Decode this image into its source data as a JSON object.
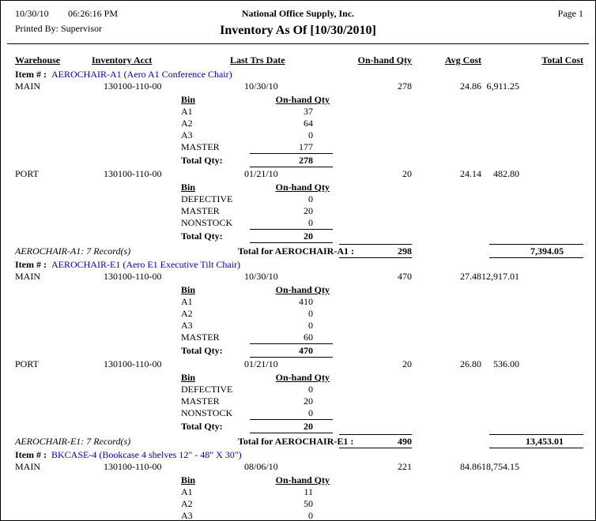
{
  "header": {
    "date": "10/30/10",
    "time": "06:26:16 PM",
    "company": "National Office Supply, Inc.",
    "page": "Page 1",
    "printed_by": "Printed By: Supervisor",
    "title": "Inventory As Of [10/30/2010]"
  },
  "columns": {
    "warehouse": "Warehouse",
    "inventory_acct": "Inventory Acct",
    "last_trs_date": "Last Trs Date",
    "on_hand_qty": "On-hand Qty",
    "avg_cost": "Avg Cost",
    "total_cost": "Total Cost"
  },
  "labels": {
    "item_prefix": "Item # :",
    "bin": "Bin",
    "bin_qty": "On-hand Qty",
    "total_qty": "Total Qty:"
  },
  "link_color": "#0000cc",
  "items": [
    {
      "code_desc": "AEROCHAIR-A1 (Aero A1 Conference Chair)",
      "warehouses": [
        {
          "name": "MAIN",
          "acct": "130100-110-00",
          "date": "10/30/10",
          "qty": "278",
          "avg": "24.86",
          "total": "6,911.25",
          "bins": [
            {
              "name": "A1",
              "qty": "37"
            },
            {
              "name": "A2",
              "qty": "64"
            },
            {
              "name": "A3",
              "qty": "0"
            },
            {
              "name": "MASTER",
              "qty": "177"
            }
          ],
          "bin_total": "278"
        },
        {
          "name": "PORT",
          "acct": "130100-110-00",
          "date": "01/21/10",
          "qty": "20",
          "avg": "24.14",
          "total": "482.80",
          "bins": [
            {
              "name": "DEFECTIVE",
              "qty": "0"
            },
            {
              "name": "MASTER",
              "qty": "20"
            },
            {
              "name": "NONSTOCK",
              "qty": "0"
            }
          ],
          "bin_total": "20"
        }
      ],
      "summary_left": "AEROCHAIR-A1: 7 Record(s)",
      "summary_label": "Total for AEROCHAIR-A1 :",
      "summary_qty": "298",
      "summary_total": "7,394.05"
    },
    {
      "code_desc": "AEROCHAIR-E1 (Aero E1 Executive Tilt Chair)",
      "warehouses": [
        {
          "name": "MAIN",
          "acct": "130100-110-00",
          "date": "10/30/10",
          "qty": "470",
          "avg": "27.48",
          "total": "12,917.01",
          "bins": [
            {
              "name": "A1",
              "qty": "410"
            },
            {
              "name": "A2",
              "qty": "0"
            },
            {
              "name": "A3",
              "qty": "0"
            },
            {
              "name": "MASTER",
              "qty": "60"
            }
          ],
          "bin_total": "470"
        },
        {
          "name": "PORT",
          "acct": "130100-110-00",
          "date": "01/21/10",
          "qty": "20",
          "avg": "26.80",
          "total": "536.00",
          "bins": [
            {
              "name": "DEFECTIVE",
              "qty": "0"
            },
            {
              "name": "MASTER",
              "qty": "20"
            },
            {
              "name": "NONSTOCK",
              "qty": "0"
            }
          ],
          "bin_total": "20"
        }
      ],
      "summary_left": "AEROCHAIR-E1: 7 Record(s)",
      "summary_label": "Total for AEROCHAIR-E1 :",
      "summary_qty": "490",
      "summary_total": "13,453.01"
    },
    {
      "code_desc": "BKCASE-4 (Bookcase 4 shelves 12\" - 48\" X 30\")",
      "warehouses": [
        {
          "name": "MAIN",
          "acct": "130100-110-00",
          "date": "08/06/10",
          "qty": "221",
          "avg": "84.86",
          "total": "18,754.15",
          "bins": [
            {
              "name": "A1",
              "qty": "11"
            },
            {
              "name": "A2",
              "qty": "50"
            },
            {
              "name": "A3",
              "qty": "0"
            }
          ]
        }
      ]
    }
  ]
}
